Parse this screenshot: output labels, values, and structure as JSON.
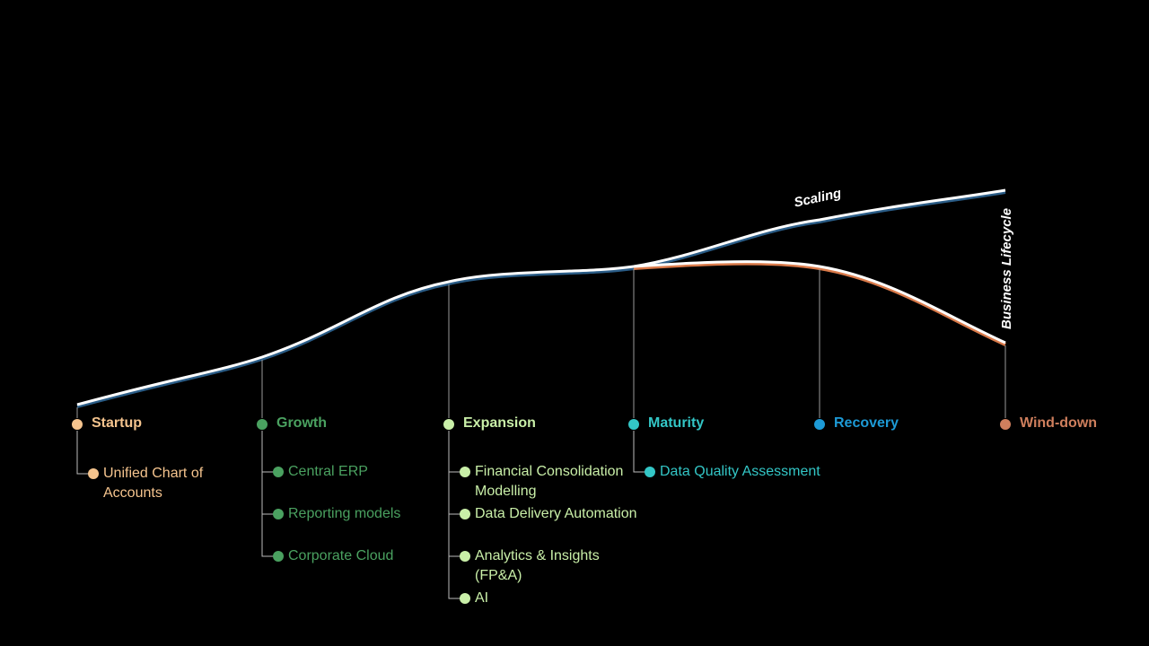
{
  "curve_labels": {
    "scaling": "Scaling",
    "lifecycle": "Business Lifecycle"
  },
  "colors": {
    "startup": "#f5c48e",
    "growth": "#4aa160",
    "expansion": "#c9efa8",
    "maturity": "#33c6c6",
    "recovery": "#1d9ad6",
    "winddown": "#cf7f5d",
    "connector": "#bdbdbd"
  },
  "stages": [
    {
      "key": "startup",
      "label": "Startup",
      "items": [
        "Unified Chart of Accounts"
      ]
    },
    {
      "key": "growth",
      "label": "Growth",
      "items": [
        "Central ERP",
        "Reporting models",
        "Corporate Cloud"
      ]
    },
    {
      "key": "expansion",
      "label": "Expansion",
      "items": [
        "Financial Consolidation Modelling",
        "Data Delivery Automation",
        "Analytics & Insights (FP&A)",
        "AI"
      ]
    },
    {
      "key": "maturity",
      "label": "Maturity",
      "items": [
        "Data Quality Assessment"
      ]
    },
    {
      "key": "recovery",
      "label": "Recovery",
      "items": []
    },
    {
      "key": "winddown",
      "label": "Wind-down",
      "items": []
    }
  ]
}
